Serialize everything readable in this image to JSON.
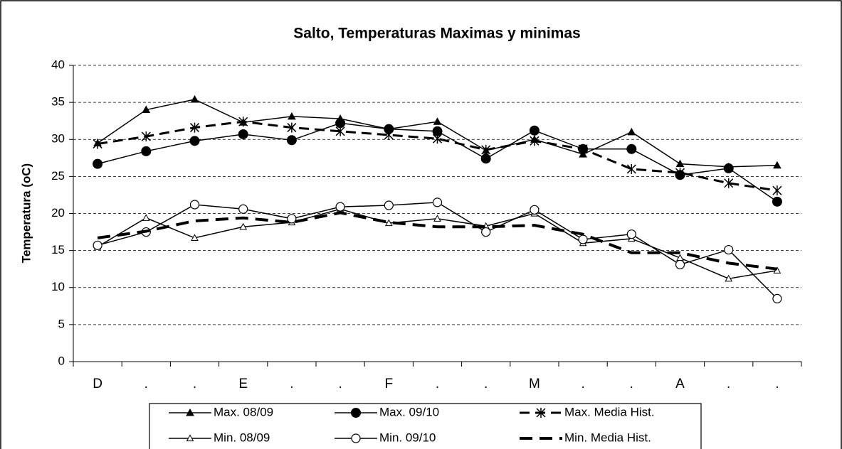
{
  "chart_data": {
    "type": "line",
    "title": "Salto, Temperaturas Maximas y minimas",
    "y_label": "Temperatura (oC)",
    "categories": [
      "D",
      ".",
      ".",
      "E",
      ".",
      ".",
      "F",
      ".",
      ".",
      "M",
      ".",
      ".",
      "A",
      ".",
      "."
    ],
    "ylim": [
      0,
      40
    ],
    "yticks": [
      0,
      5,
      10,
      15,
      20,
      25,
      30,
      35,
      40
    ],
    "grid": true,
    "legend": "bottom",
    "series": [
      {
        "name": "Max. 08/09",
        "color": "#000000",
        "marker": "triangle-filled",
        "dashed": false,
        "values": [
          29.5,
          34,
          35.4,
          32.3,
          33.1,
          32.8,
          31.4,
          32.4,
          28.5,
          30,
          28,
          31,
          26.7,
          26.3,
          26.5
        ]
      },
      {
        "name": "Max. 09/10",
        "color": "#000000",
        "marker": "circle-filled",
        "dashed": false,
        "values": [
          26.7,
          28.4,
          29.8,
          30.7,
          29.9,
          32.2,
          31.4,
          31.1,
          27.4,
          31.2,
          28.7,
          28.7,
          25.2,
          26.1,
          21.6
        ]
      },
      {
        "name": "Max. Media Hist.",
        "color": "#000000",
        "marker": "asterisk",
        "dashed": true,
        "values": [
          29.4,
          30.4,
          31.6,
          32.4,
          31.6,
          31.1,
          30.6,
          30.1,
          28.6,
          29.8,
          28.7,
          26,
          25.5,
          24.1,
          23.1
        ]
      },
      {
        "name": "Min. 08/09",
        "color": "#000000",
        "marker": "triangle-open",
        "dashed": false,
        "values": [
          15.5,
          19.4,
          16.7,
          18.2,
          18.8,
          20.6,
          18.7,
          19.3,
          18.3,
          20,
          16,
          16.6,
          14,
          11.2,
          12.3
        ]
      },
      {
        "name": "Min. 09/10",
        "color": "#000000",
        "marker": "circle-open",
        "dashed": false,
        "values": [
          15.7,
          17.5,
          21.2,
          20.6,
          19.3,
          20.9,
          21.1,
          21.5,
          17.5,
          20.5,
          16.5,
          17.2,
          13.1,
          15.1,
          8.5
        ]
      },
      {
        "name": "Min. Media Hist.",
        "color": "#000000",
        "marker": "none",
        "dashed": true,
        "values": [
          16.7,
          17.6,
          19,
          19.4,
          18.8,
          20.1,
          18.8,
          18.2,
          18.2,
          18.4,
          17.2,
          14.7,
          14.7,
          13.3,
          12.5
        ]
      }
    ]
  }
}
